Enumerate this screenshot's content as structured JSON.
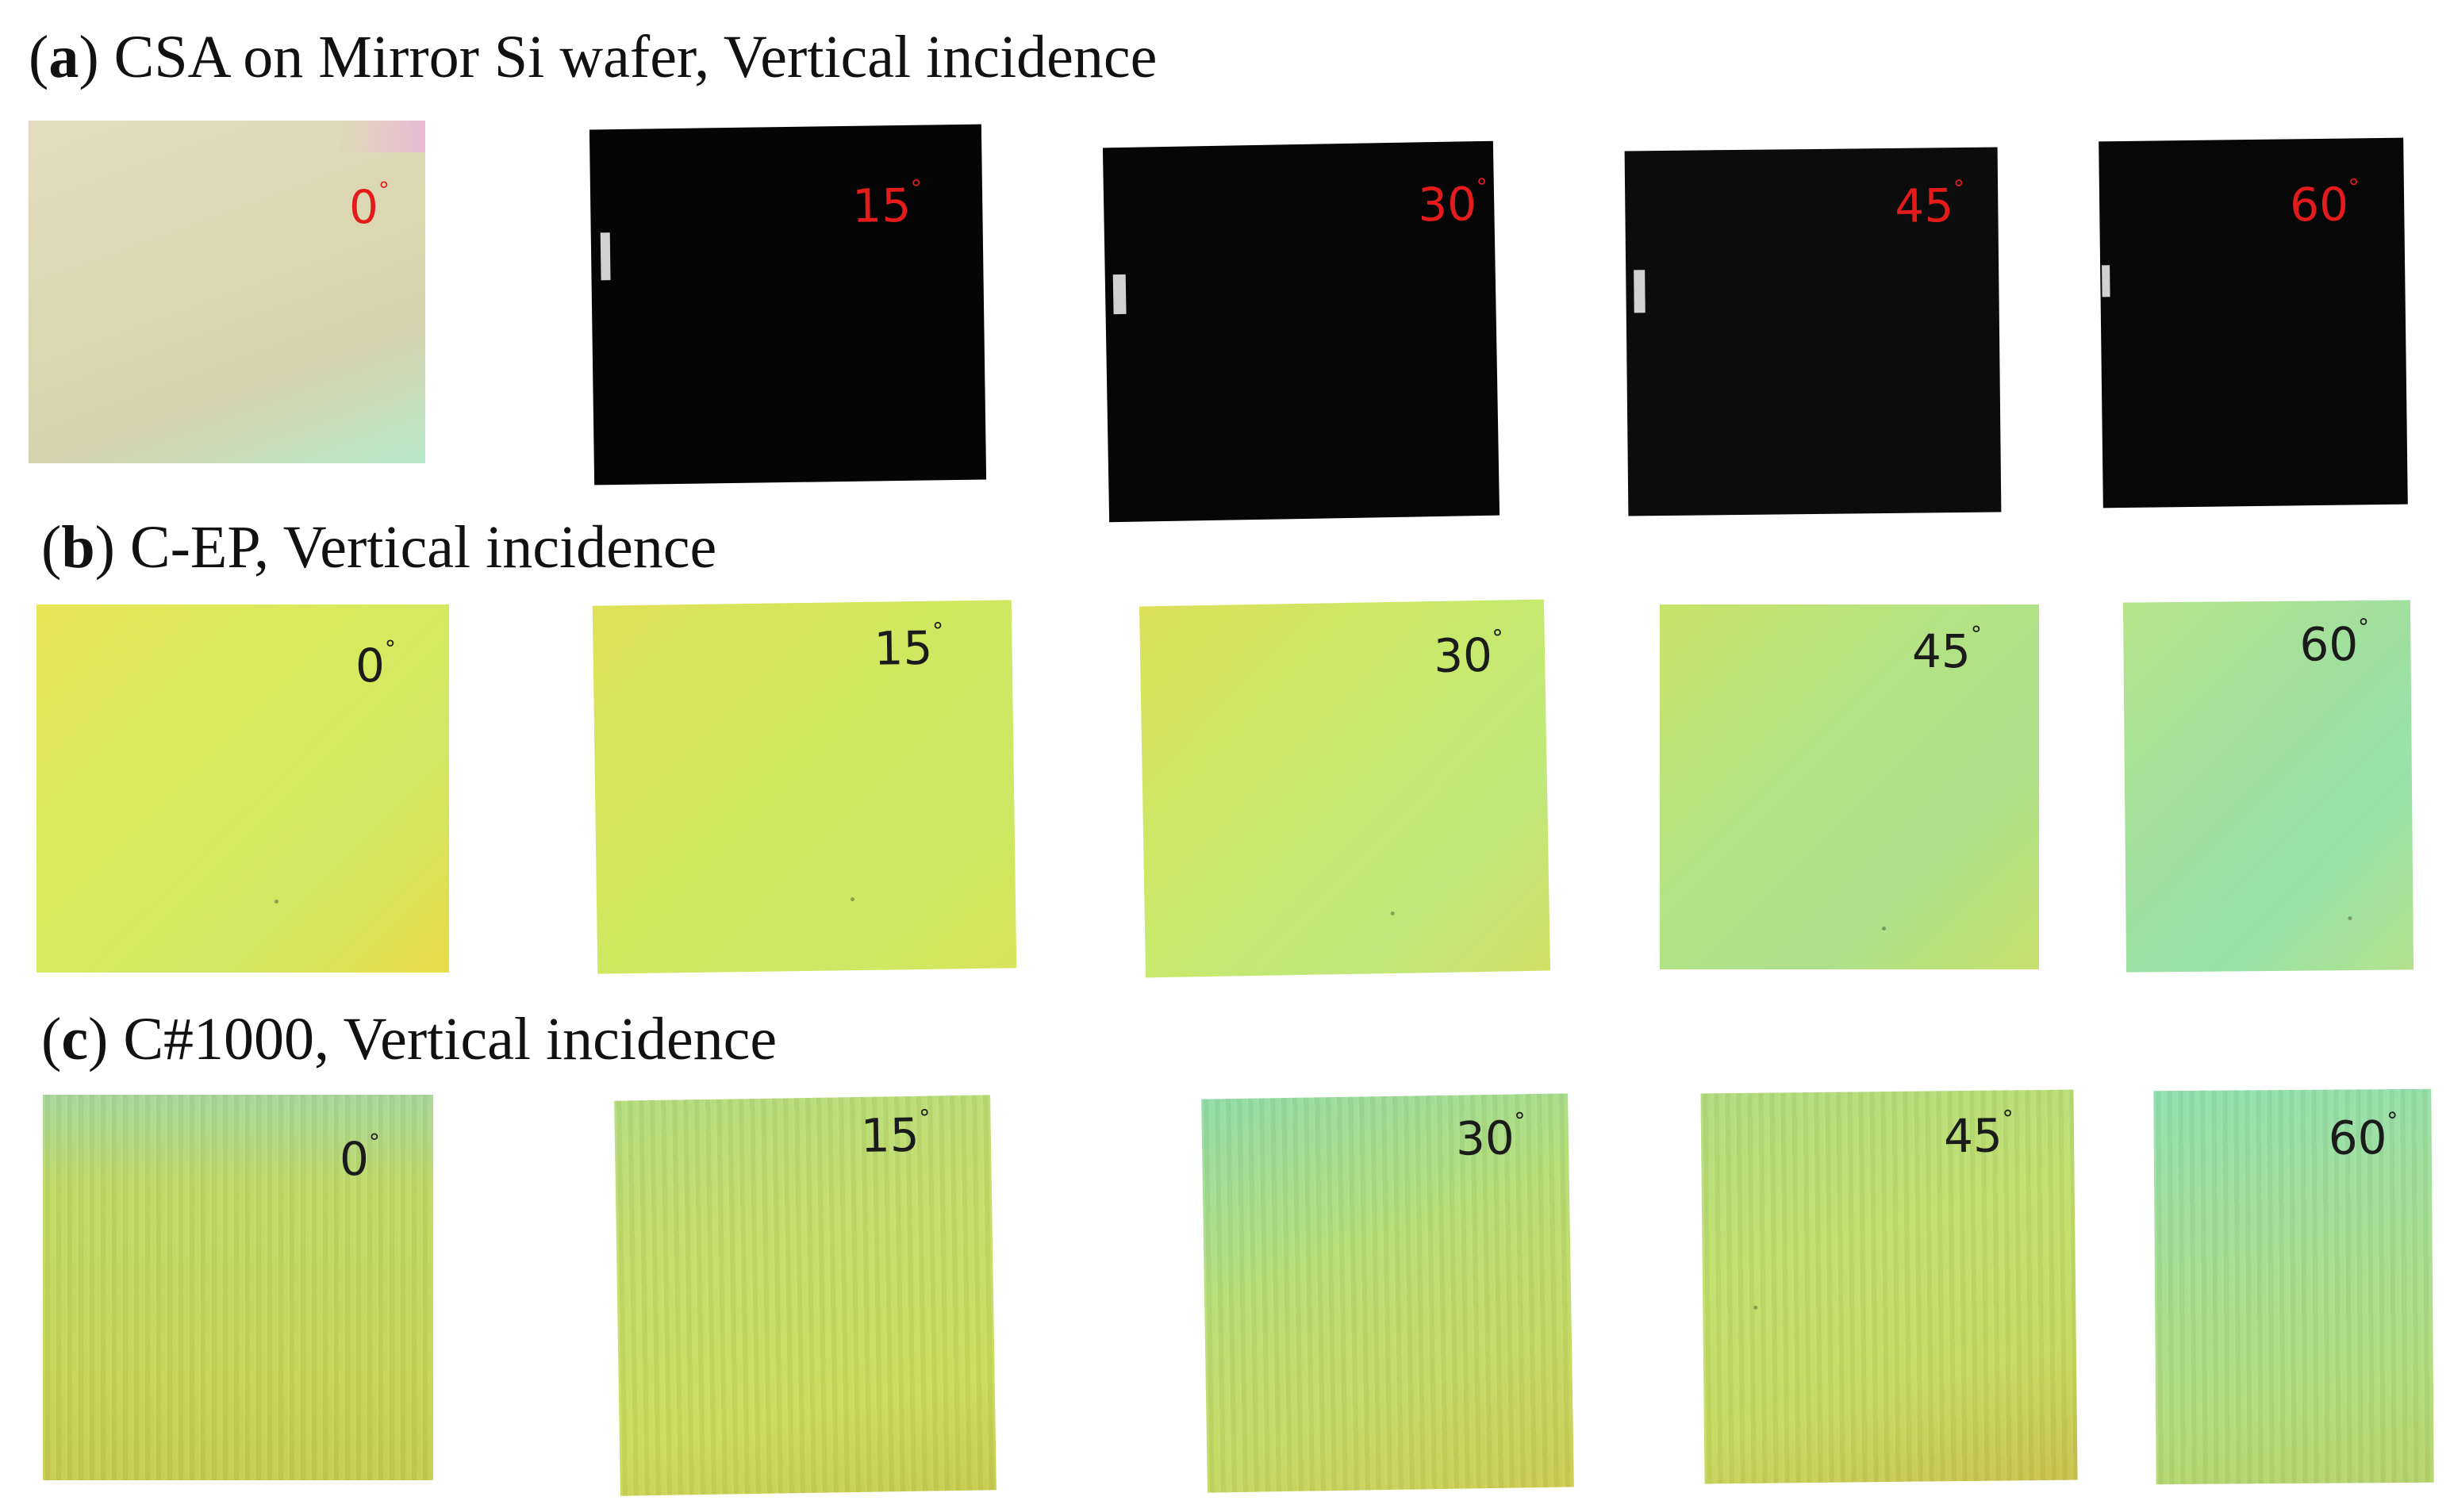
{
  "panels": {
    "a": {
      "letter": "a",
      "title": ") CSA on Mirror Si wafer, Vertical incidence",
      "samples": [
        {
          "angle": "0",
          "deg": "°",
          "color": "#dcd8b2"
        },
        {
          "angle": "15",
          "deg": "°",
          "color": "#050505"
        },
        {
          "angle": "30",
          "deg": "°",
          "color": "#060606"
        },
        {
          "angle": "45",
          "deg": "°",
          "color": "#0c0c0c"
        },
        {
          "angle": "60",
          "deg": "°",
          "color": "#070707"
        }
      ]
    },
    "b": {
      "letter": "b",
      "title": ") C-EP, Vertical incidence",
      "samples": [
        {
          "angle": "0",
          "deg": "°",
          "color": "#d4ea5c"
        },
        {
          "angle": "15",
          "deg": "°",
          "color": "#cfe85f"
        },
        {
          "angle": "30",
          "deg": "°",
          "color": "#c8ea6c"
        },
        {
          "angle": "45",
          "deg": "°",
          "color": "#b6e27e"
        },
        {
          "angle": "60",
          "deg": "°",
          "color": "#a5e29a"
        }
      ]
    },
    "c": {
      "letter": "c",
      "title": ") C#1000, Vertical incidence",
      "samples": [
        {
          "angle": "0",
          "deg": "°",
          "color": "#c2d85a"
        },
        {
          "angle": "15",
          "deg": "°",
          "color": "#c4de66"
        },
        {
          "angle": "30",
          "deg": "°",
          "color": "#bddc6a"
        },
        {
          "angle": "45",
          "deg": "°",
          "color": "#bede6a"
        },
        {
          "angle": "60",
          "deg": "°",
          "color": "#a6dc8c"
        }
      ]
    }
  },
  "colors": {
    "label_red": "#e31b1b",
    "label_dark": "#1b1b1b"
  }
}
